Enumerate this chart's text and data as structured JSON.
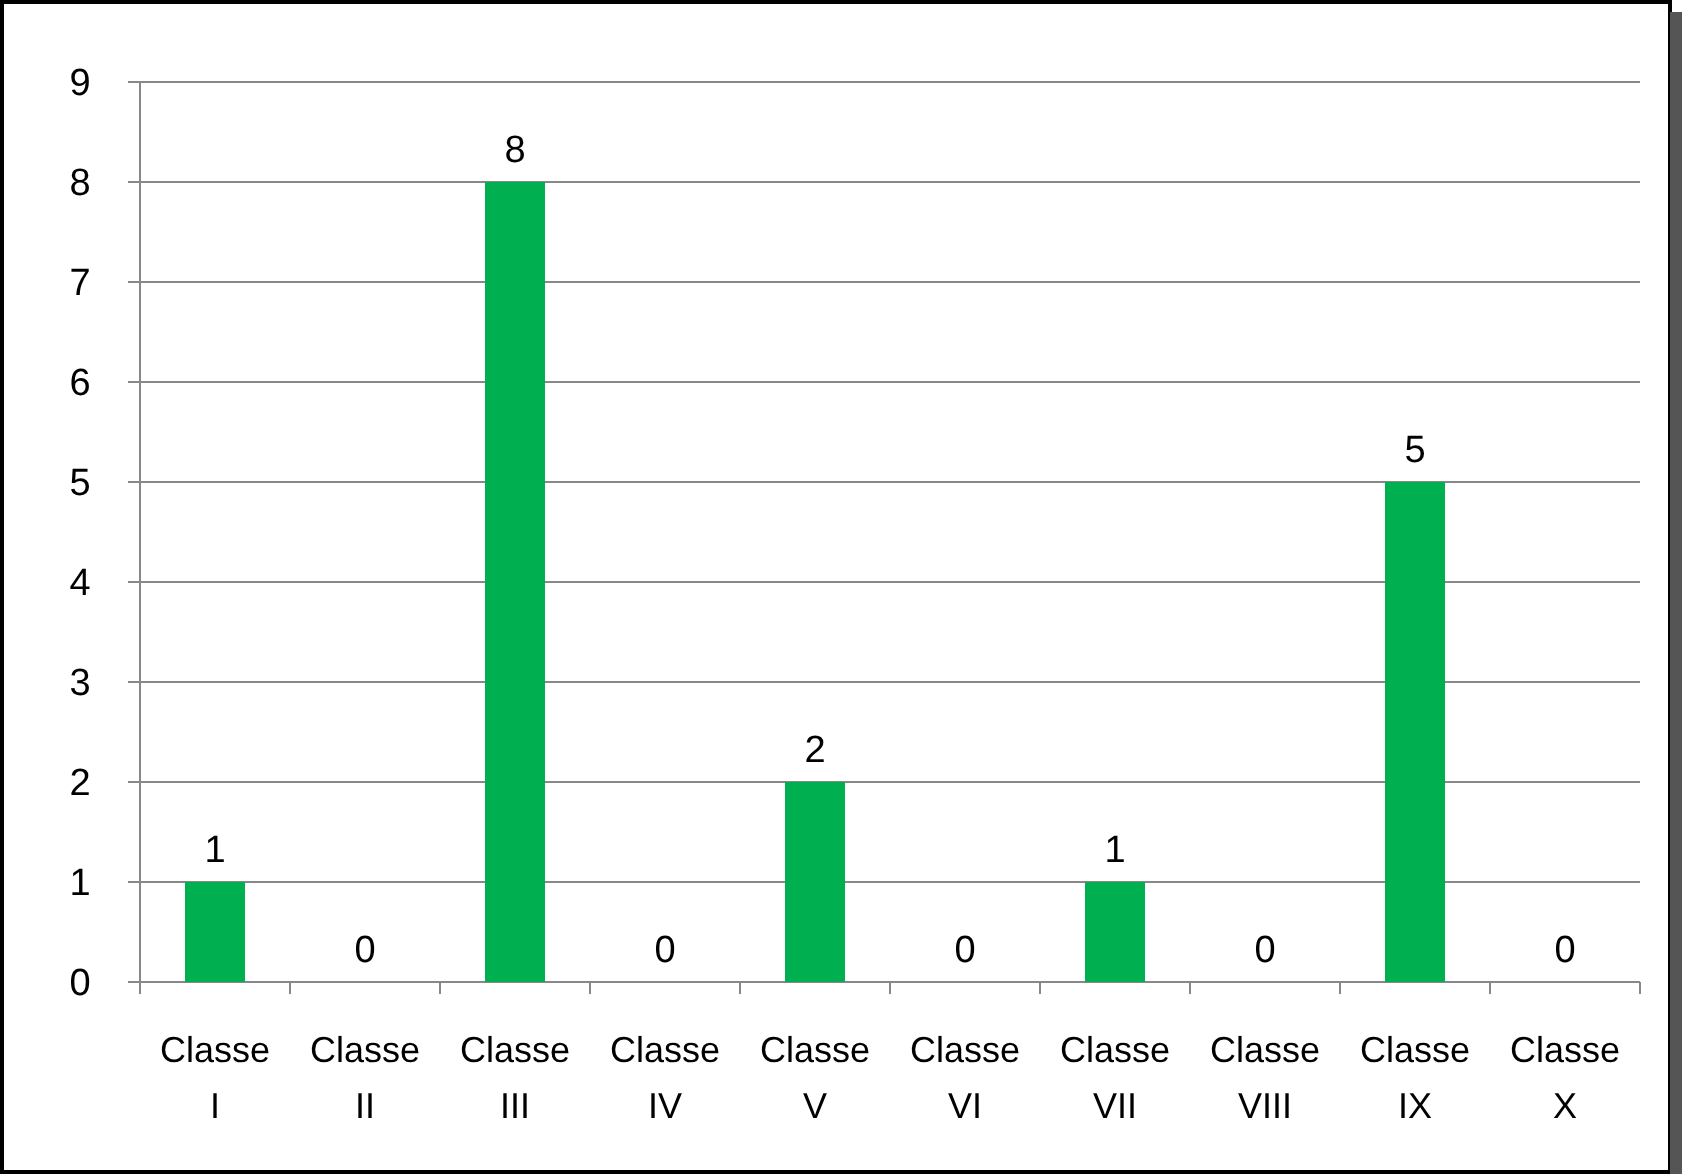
{
  "chart_data": {
    "type": "bar",
    "categories": [
      "Classe I",
      "Classe II",
      "Classe III",
      "Classe IV",
      "Classe V",
      "Classe VI",
      "Classe VII",
      "Classe VIII",
      "Classe IX",
      "Classe X"
    ],
    "values": [
      1,
      0,
      8,
      0,
      2,
      0,
      1,
      0,
      5,
      0
    ],
    "color": "#00b050",
    "ylim": [
      0,
      9
    ],
    "yticks": [
      0,
      1,
      2,
      3,
      4,
      5,
      6,
      7,
      8,
      9
    ],
    "grid": "y",
    "data_labels": true
  }
}
